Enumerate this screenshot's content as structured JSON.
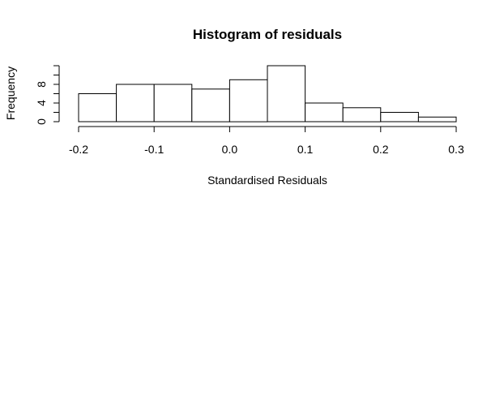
{
  "chart_data": {
    "type": "bar",
    "title": "Histogram of residuals",
    "xlabel": "Standardised Residuals",
    "ylabel": "Frequency",
    "bins": [
      {
        "start": -0.2,
        "end": -0.15,
        "count": 6
      },
      {
        "start": -0.15,
        "end": -0.1,
        "count": 8
      },
      {
        "start": -0.1,
        "end": -0.05,
        "count": 8
      },
      {
        "start": -0.05,
        "end": 0.0,
        "count": 7
      },
      {
        "start": 0.0,
        "end": 0.05,
        "count": 9
      },
      {
        "start": 0.05,
        "end": 0.1,
        "count": 12
      },
      {
        "start": 0.1,
        "end": 0.15,
        "count": 4
      },
      {
        "start": 0.15,
        "end": 0.2,
        "count": 3
      },
      {
        "start": 0.2,
        "end": 0.25,
        "count": 2
      },
      {
        "start": 0.25,
        "end": 0.3,
        "count": 1
      }
    ],
    "xlim": [
      -0.2,
      0.3
    ],
    "ylim": [
      0,
      12
    ],
    "x_ticks": [
      -0.2,
      -0.1,
      0.0,
      0.1,
      0.2,
      0.3
    ],
    "x_tick_labels": [
      "-0.2",
      "-0.1",
      "0.0",
      "0.1",
      "0.2",
      "0.3"
    ],
    "y_ticks": [
      0,
      2,
      4,
      6,
      8,
      10,
      12
    ],
    "y_tick_labels": [
      "0",
      "",
      "4",
      "",
      "8",
      "",
      ""
    ],
    "grid": false,
    "legend": "none"
  }
}
